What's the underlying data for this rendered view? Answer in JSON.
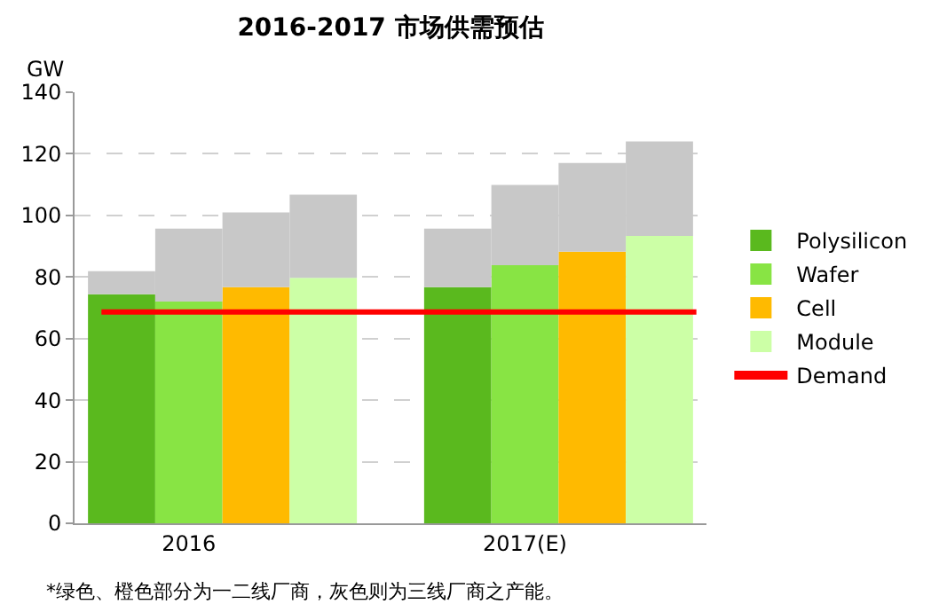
{
  "chart_data": {
    "type": "bar",
    "title": "2016-2017 市场供需预估",
    "ylabel": "GW",
    "categories": [
      null,
      "2016",
      null,
      null,
      null,
      null,
      "2017(E)",
      null,
      null
    ],
    "series": [
      {
        "name": "Polysilicon",
        "color": "#5ab91e",
        "values": [
          74.4,
          null,
          null,
          null,
          null,
          76.7,
          null,
          null,
          null
        ]
      },
      {
        "name": "Wafer",
        "color": "#88e444",
        "values": [
          null,
          72,
          null,
          null,
          null,
          null,
          83.8,
          null,
          null
        ]
      },
      {
        "name": "Cell",
        "color": "#ffba00",
        "values": [
          null,
          null,
          76.7,
          null,
          null,
          null,
          null,
          88.2,
          null
        ]
      },
      {
        "name": "Module",
        "color": "#ccffa6",
        "values": [
          null,
          null,
          null,
          79.7,
          null,
          null,
          null,
          null,
          93.3
        ]
      },
      {
        "color": "#c8c8c8",
        "values": [
          7.5,
          23.7,
          24.3,
          27,
          null,
          19,
          26.1,
          28.8,
          30.7
        ]
      }
    ],
    "stacked": true,
    "ref_lines": [
      {
        "axis": "y",
        "value": 68.6,
        "label": "Demand",
        "color": "#ff0000"
      }
    ],
    "ylim": [
      0,
      140
    ],
    "yticks": [
      0,
      20,
      40,
      60,
      80,
      100,
      120,
      140
    ],
    "grid": "y",
    "legend": "right",
    "annotations": [
      "*绿色、橙色部分为一二线厂商，灰色则为三线厂商之产能。"
    ]
  }
}
